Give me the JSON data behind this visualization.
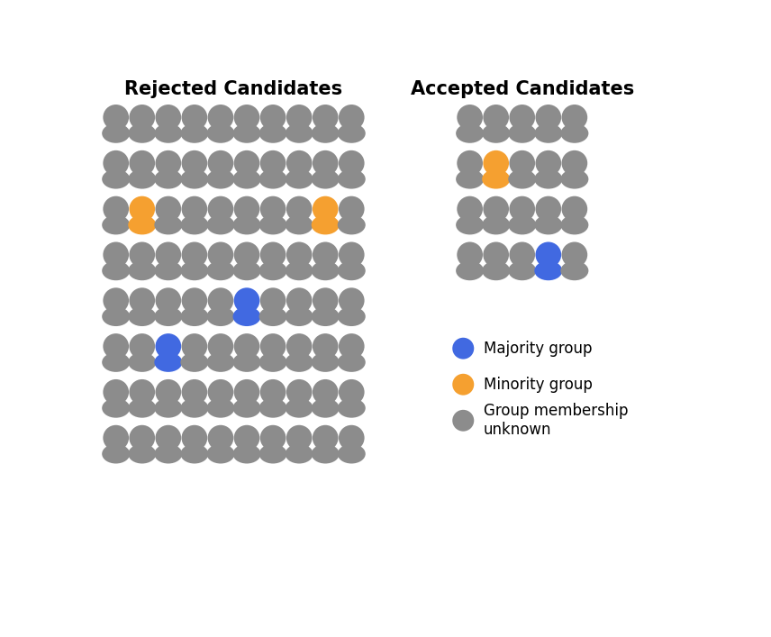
{
  "title_rejected": "Rejected Candidates",
  "title_accepted": "Accepted Candidates",
  "gray": "#8c8c8c",
  "blue": "#4169e1",
  "orange": "#f5a030",
  "white": "#ffffff",
  "rejected_cols": 10,
  "rejected_rows": 8,
  "accepted_cols": 5,
  "accepted_rows": 4,
  "rejected_colored": [
    {
      "row": 2,
      "col": 1,
      "color": "orange"
    },
    {
      "row": 2,
      "col": 8,
      "color": "orange"
    },
    {
      "row": 4,
      "col": 5,
      "color": "blue"
    },
    {
      "row": 5,
      "col": 2,
      "color": "blue"
    }
  ],
  "accepted_colored": [
    {
      "row": 1,
      "col": 1,
      "color": "orange"
    },
    {
      "row": 3,
      "col": 3,
      "color": "blue"
    }
  ],
  "legend_items": [
    {
      "color": "blue",
      "label": "Majority group"
    },
    {
      "color": "orange",
      "label": "Minority group"
    },
    {
      "color": "gray",
      "label": "Group membership\nunknown"
    }
  ],
  "title_fontsize": 15,
  "title_fontweight": "bold",
  "fig_width": 8.56,
  "fig_height": 7.07,
  "dpi": 100
}
